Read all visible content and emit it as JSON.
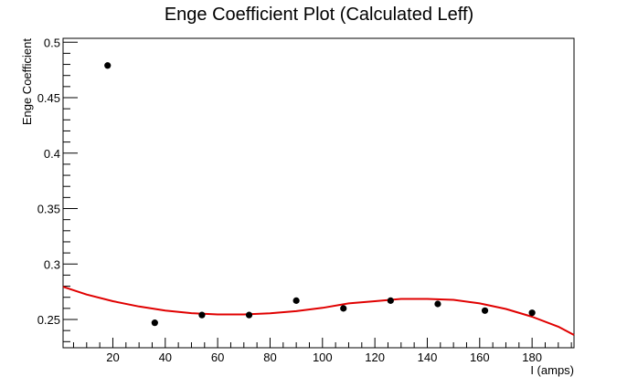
{
  "chart_data": {
    "type": "scatter",
    "title": "Enge Coefficient Plot (Calculated Leff)",
    "xlabel": "I (amps)",
    "ylabel": "Enge Coefficient",
    "xlim": [
      1,
      196
    ],
    "ylim": [
      0.2245,
      0.5035
    ],
    "x_ticks": [
      20,
      40,
      60,
      80,
      100,
      120,
      140,
      160,
      180
    ],
    "y_ticks": [
      0.25,
      0.3,
      0.35,
      0.4,
      0.45,
      0.5
    ],
    "y_tick_labels": [
      "0.25",
      "0.3",
      "0.35",
      "0.4",
      "0.45",
      "0.5"
    ],
    "grid": false,
    "series": [
      {
        "kind": "points",
        "color": "#000000",
        "x": [
          18,
          36,
          54,
          72,
          90,
          108,
          126,
          144,
          162,
          180
        ],
        "y": [
          0.479,
          0.247,
          0.254,
          0.254,
          0.267,
          0.26,
          0.267,
          0.264,
          0.258,
          0.256
        ]
      },
      {
        "kind": "fit",
        "color": "#e00000",
        "x": [
          1,
          10,
          20,
          30,
          40,
          50,
          60,
          70,
          80,
          90,
          100,
          110,
          120,
          130,
          140,
          150,
          160,
          170,
          180,
          190,
          196
        ],
        "y": [
          0.2795,
          0.2725,
          0.2665,
          0.2617,
          0.258,
          0.2557,
          0.2545,
          0.2545,
          0.2555,
          0.2575,
          0.2605,
          0.2645,
          0.2665,
          0.2685,
          0.2685,
          0.2677,
          0.2645,
          0.2595,
          0.2525,
          0.2435,
          0.236
        ]
      }
    ]
  }
}
